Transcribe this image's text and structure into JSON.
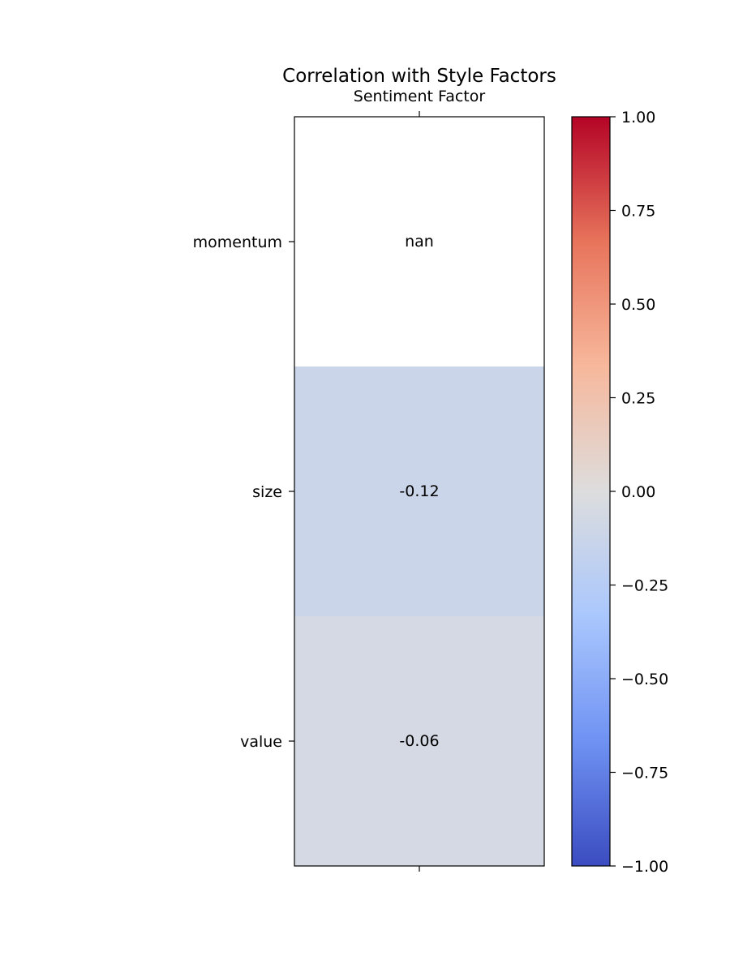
{
  "chart_data": {
    "type": "heatmap",
    "title": "Correlation with Style Factors",
    "x_categories": [
      "Sentiment Factor"
    ],
    "y_categories": [
      "momentum",
      "size",
      "value"
    ],
    "values": [
      null,
      -0.12,
      -0.06
    ],
    "cell_labels": [
      "nan",
      "-0.12",
      "-0.06"
    ],
    "colormap": "coolwarm",
    "colorbar": {
      "range": [
        -1.0,
        1.0
      ],
      "tick_values": [
        1.0,
        0.75,
        0.5,
        0.25,
        0.0,
        -0.25,
        -0.5,
        -0.75,
        -1.0
      ],
      "tick_labels": [
        "1.00",
        "0.75",
        "0.50",
        "0.25",
        "0.00",
        "−0.25",
        "−0.50",
        "−0.75",
        "−1.00"
      ]
    },
    "x_axis_position": "top",
    "grid": false,
    "colors": {
      "nan_cell": "#ffffff",
      "gradient_stops": [
        "#3b4cc0",
        "#6f92f3",
        "#aac7fd",
        "#dddddd",
        "#f7b89c",
        "#e7745b",
        "#b40426"
      ]
    }
  }
}
